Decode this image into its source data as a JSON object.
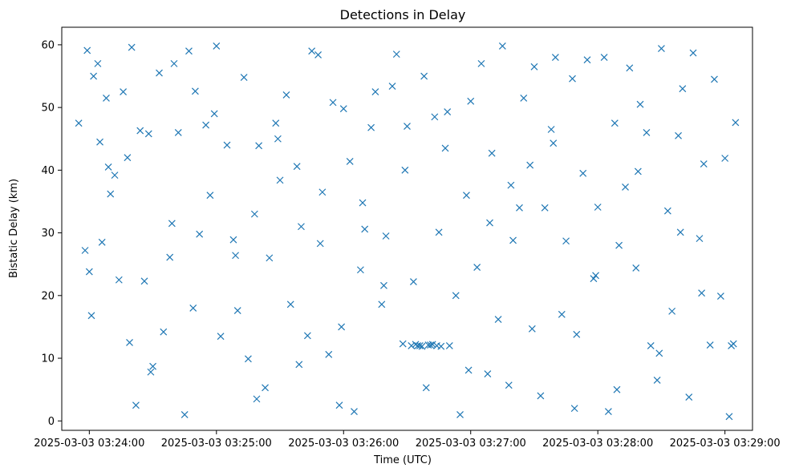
{
  "chart_data": {
    "type": "scatter",
    "title": "Detections in Delay",
    "xlabel": "Time (UTC)",
    "ylabel": "Bistatic Delay (km)",
    "x_ticks": [
      "2025-03-03 03:24:00",
      "2025-03-03 03:25:00",
      "2025-03-03 03:26:00",
      "2025-03-03 03:27:00",
      "2025-03-03 03:28:00",
      "2025-03-03 03:29:00"
    ],
    "y_ticks": [
      "0",
      "10",
      "20",
      "30",
      "40",
      "50",
      "60"
    ],
    "xlim": [
      "2025-03-03 03:23:47",
      "2025-03-03 03:29:13"
    ],
    "ylim": [
      -1.5,
      62.8
    ],
    "marker": "x",
    "color": "#1f77b4",
    "grid": false,
    "series": [
      {
        "x": [
          "2025-03-03 03:23:55",
          "2025-03-03 03:23:58",
          "2025-03-03 03:23:59",
          "2025-03-03 03:24:00",
          "2025-03-03 03:24:02",
          "2025-03-03 03:24:04",
          "2025-03-03 03:24:05",
          "2025-03-03 03:24:06",
          "2025-03-03 03:24:08",
          "2025-03-03 03:24:10",
          "2025-03-03 03:24:12",
          "2025-03-03 03:24:14",
          "2025-03-03 03:24:16",
          "2025-03-03 03:24:18",
          "2025-03-03 03:24:20",
          "2025-03-03 03:24:22",
          "2025-03-03 03:24:24",
          "2025-03-03 03:24:26",
          "2025-03-03 03:24:28",
          "2025-03-03 03:24:30",
          "2025-03-03 03:24:33",
          "2025-03-03 03:24:35",
          "2025-03-03 03:24:38",
          "2025-03-03 03:24:40",
          "2025-03-03 03:24:42",
          "2025-03-03 03:24:45",
          "2025-03-03 03:24:47",
          "2025-03-03 03:24:50",
          "2025-03-03 03:24:52",
          "2025-03-03 03:24:55",
          "2025-03-03 03:24:57",
          "2025-03-03 03:25:00",
          "2025-03-03 03:25:02",
          "2025-03-03 03:25:05",
          "2025-03-03 03:25:08",
          "2025-03-03 03:25:10",
          "2025-03-03 03:25:13",
          "2025-03-03 03:25:15",
          "2025-03-03 03:25:18",
          "2025-03-03 03:25:20",
          "2025-03-03 03:25:23",
          "2025-03-03 03:25:25",
          "2025-03-03 03:25:28",
          "2025-03-03 03:25:30",
          "2025-03-03 03:25:33",
          "2025-03-03 03:25:35",
          "2025-03-03 03:25:38",
          "2025-03-03 03:25:40",
          "2025-03-03 03:25:43",
          "2025-03-03 03:25:45",
          "2025-03-03 03:25:48",
          "2025-03-03 03:25:50",
          "2025-03-03 03:25:53",
          "2025-03-03 03:25:55",
          "2025-03-03 03:25:58",
          "2025-03-03 03:26:00",
          "2025-03-03 03:26:03",
          "2025-03-03 03:26:05",
          "2025-03-03 03:26:08",
          "2025-03-03 03:26:10",
          "2025-03-03 03:26:13",
          "2025-03-03 03:26:15",
          "2025-03-03 03:26:18",
          "2025-03-03 03:26:20",
          "2025-03-03 03:26:23",
          "2025-03-03 03:26:25",
          "2025-03-03 03:26:28",
          "2025-03-03 03:26:30",
          "2025-03-03 03:26:33",
          "2025-03-03 03:26:35",
          "2025-03-03 03:26:38",
          "2025-03-03 03:26:40",
          "2025-03-03 03:26:43",
          "2025-03-03 03:26:45",
          "2025-03-03 03:26:48",
          "2025-03-03 03:26:50",
          "2025-03-03 03:26:53",
          "2025-03-03 03:26:55",
          "2025-03-03 03:26:58",
          "2025-03-03 03:27:00",
          "2025-03-03 03:27:03",
          "2025-03-03 03:27:05",
          "2025-03-03 03:27:08",
          "2025-03-03 03:27:10",
          "2025-03-03 03:27:13",
          "2025-03-03 03:27:15",
          "2025-03-03 03:27:18",
          "2025-03-03 03:27:20",
          "2025-03-03 03:27:23",
          "2025-03-03 03:27:25",
          "2025-03-03 03:27:28",
          "2025-03-03 03:27:30",
          "2025-03-03 03:27:33",
          "2025-03-03 03:27:35",
          "2025-03-03 03:27:38",
          "2025-03-03 03:27:40",
          "2025-03-03 03:27:43",
          "2025-03-03 03:27:45",
          "2025-03-03 03:27:48",
          "2025-03-03 03:27:50",
          "2025-03-03 03:27:53",
          "2025-03-03 03:27:55",
          "2025-03-03 03:27:58",
          "2025-03-03 03:28:00",
          "2025-03-03 03:28:03",
          "2025-03-03 03:28:05",
          "2025-03-03 03:28:08",
          "2025-03-03 03:28:10",
          "2025-03-03 03:28:13",
          "2025-03-03 03:28:15",
          "2025-03-03 03:28:18",
          "2025-03-03 03:28:20",
          "2025-03-03 03:28:23",
          "2025-03-03 03:28:25",
          "2025-03-03 03:28:28",
          "2025-03-03 03:28:30",
          "2025-03-03 03:28:33",
          "2025-03-03 03:28:35",
          "2025-03-03 03:28:38",
          "2025-03-03 03:28:40",
          "2025-03-03 03:28:43",
          "2025-03-03 03:28:45",
          "2025-03-03 03:28:48",
          "2025-03-03 03:28:50",
          "2025-03-03 03:28:53",
          "2025-03-03 03:28:55",
          "2025-03-03 03:28:58",
          "2025-03-03 03:29:00",
          "2025-03-03 03:29:02",
          "2025-03-03 03:29:05",
          "2025-03-03 03:24:01",
          "2025-03-03 03:24:09",
          "2025-03-03 03:24:19",
          "2025-03-03 03:24:29",
          "2025-03-03 03:24:39",
          "2025-03-03 03:24:49",
          "2025-03-03 03:24:59",
          "2025-03-03 03:25:09",
          "2025-03-03 03:25:19",
          "2025-03-03 03:25:29",
          "2025-03-03 03:25:39",
          "2025-03-03 03:25:49",
          "2025-03-03 03:25:59",
          "2025-03-03 03:26:09",
          "2025-03-03 03:26:19",
          "2025-03-03 03:26:29",
          "2025-03-03 03:26:39",
          "2025-03-03 03:26:49",
          "2025-03-03 03:26:59",
          "2025-03-03 03:27:09",
          "2025-03-03 03:27:19",
          "2025-03-03 03:27:29",
          "2025-03-03 03:27:39",
          "2025-03-03 03:27:49",
          "2025-03-03 03:27:59",
          "2025-03-03 03:28:09",
          "2025-03-03 03:28:19",
          "2025-03-03 03:28:29",
          "2025-03-03 03:28:39",
          "2025-03-03 03:28:49",
          "2025-03-03 03:26:32",
          "2025-03-03 03:26:34",
          "2025-03-03 03:26:36",
          "2025-03-03 03:26:37",
          "2025-03-03 03:26:41",
          "2025-03-03 03:26:42",
          "2025-03-03 03:26:44",
          "2025-03-03 03:26:46",
          "2025-03-03 03:29:03",
          "2025-03-03 03:29:04"
        ],
        "y": [
          47.5,
          27.2,
          59.1,
          23.8,
          55.0,
          57.0,
          44.5,
          28.5,
          51.5,
          36.2,
          39.2,
          22.5,
          52.5,
          42.0,
          59.6,
          2.5,
          46.3,
          22.3,
          45.8,
          8.7,
          55.5,
          14.2,
          26.1,
          57.0,
          46.0,
          1.0,
          59.0,
          52.6,
          29.8,
          47.2,
          36.0,
          59.8,
          13.5,
          44.0,
          28.9,
          17.6,
          54.8,
          9.9,
          33.0,
          43.9,
          5.3,
          26.0,
          47.5,
          38.4,
          52.0,
          18.6,
          40.6,
          31.0,
          13.6,
          59.0,
          58.4,
          36.5,
          10.6,
          50.8,
          2.5,
          49.8,
          41.4,
          1.5,
          24.1,
          30.6,
          46.8,
          52.5,
          18.6,
          29.5,
          53.4,
          58.5,
          12.3,
          47.0,
          22.2,
          12.0,
          55.0,
          12.1,
          48.5,
          30.1,
          43.5,
          12.0,
          20.0,
          1.0,
          36.0,
          51.0,
          24.5,
          57.0,
          7.5,
          42.7,
          16.2,
          59.8,
          5.7,
          28.8,
          34.0,
          51.5,
          40.8,
          56.5,
          4.0,
          34.0,
          46.5,
          58.0,
          17.0,
          28.7,
          54.6,
          13.8,
          39.5,
          57.6,
          22.7,
          34.1,
          58.0,
          1.5,
          47.5,
          28.0,
          37.3,
          56.3,
          24.4,
          50.5,
          46.0,
          12.0,
          6.5,
          59.4,
          33.5,
          17.5,
          45.5,
          53.0,
          3.8,
          58.7,
          29.1,
          41.0,
          12.1,
          54.5,
          19.9,
          41.9,
          0.7,
          47.6,
          16.8,
          40.5,
          12.5,
          7.8,
          31.5,
          18.0,
          49.0,
          26.4,
          3.5,
          45.0,
          9.0,
          28.3,
          15.0,
          34.8,
          21.6,
          40.0,
          5.3,
          49.3,
          8.1,
          31.6,
          37.6,
          14.7,
          44.3,
          2.0,
          23.2,
          5.0,
          39.8,
          10.8,
          30.1,
          20.4,
          12.0,
          12.2,
          12.0,
          11.9,
          12.1,
          12.2,
          12.0,
          11.9,
          12.0,
          12.3
        ]
      }
    ]
  }
}
